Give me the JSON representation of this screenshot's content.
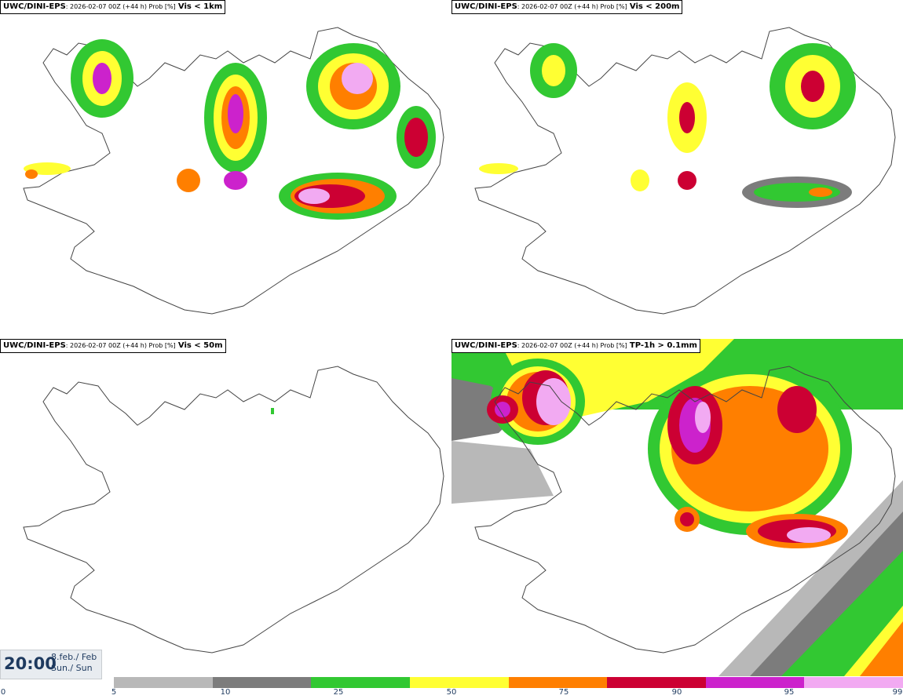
{
  "panels": [
    {
      "model": "UWC/DINI-EPS",
      "meta": ": 2026-02-07 00Z (+44 h) Prob [%]",
      "threshold": "Vis < 1km"
    },
    {
      "model": "UWC/DINI-EPS",
      "meta": ": 2026-02-07 00Z (+44 h) Prob [%]",
      "threshold": "Vis < 200m"
    },
    {
      "model": "UWC/DINI-EPS",
      "meta": ": 2026-02-07 00Z (+44 h) Prob [%]",
      "threshold": "Vis < 50m"
    },
    {
      "model": "UWC/DINI-EPS",
      "meta": ": 2026-02-07 00Z (+44 h) Prob [%]",
      "threshold": "TP-1h > 0.1mm"
    }
  ],
  "valid": {
    "time": "20:00",
    "date_line1": "8.feb./ Feb",
    "date_line2": "Sun./ Sun"
  },
  "legend": {
    "ticks": [
      "0",
      "5",
      "10",
      "25",
      "50",
      "75",
      "90",
      "95",
      "99"
    ],
    "colors": [
      "#b8b8b8",
      "#7c7c7c",
      "#32c832",
      "#ffff33",
      "#ff7f00",
      "#cc0033",
      "#cc22cc",
      "#f2aaf2"
    ]
  },
  "palette": {
    "outline": "#444444",
    "lightgray": "#b8b8b8",
    "darkgray": "#7c7c7c",
    "green": "#32c832",
    "yellow": "#ffff33",
    "orange": "#ff7f00",
    "red": "#cc0033",
    "magenta": "#cc22cc",
    "pink": "#f2aaf2"
  }
}
